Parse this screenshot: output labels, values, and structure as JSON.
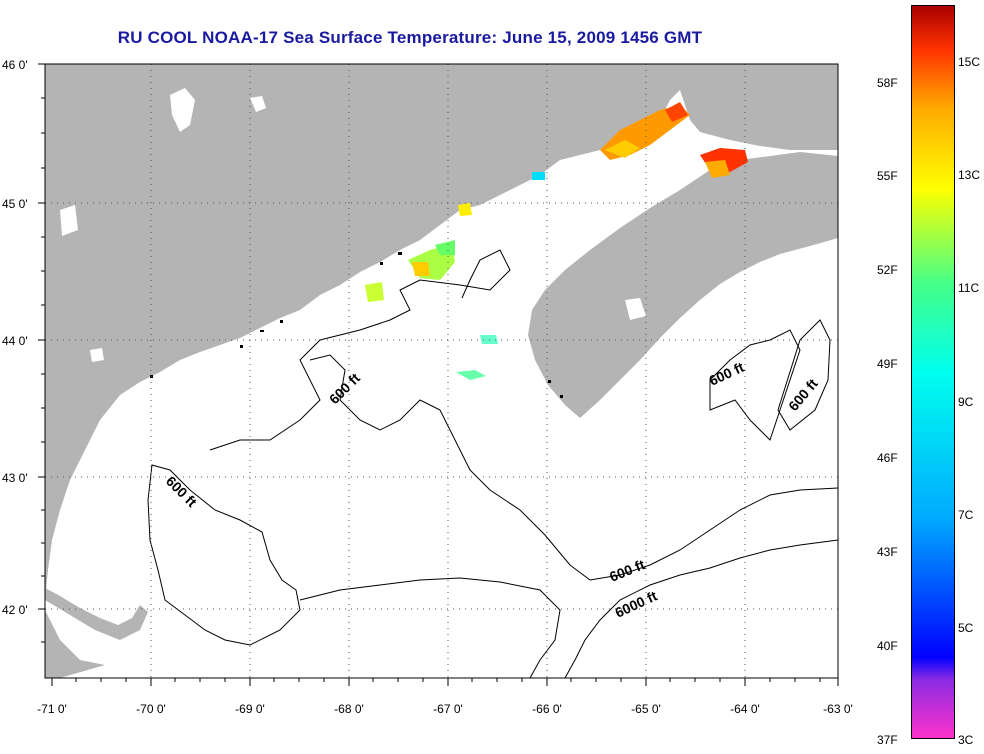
{
  "title": "RU COOL  NOAA-17  Sea Surface Temperature:  June 15, 2009 1456 GMT",
  "lat_labels": [
    "46 0'",
    "45 0'",
    "44 0'",
    "43 0'",
    "42 0'"
  ],
  "lon_labels": [
    "-71 0'",
    "-70 0'",
    "-69 0'",
    "-68 0'",
    "-67 0'",
    "-66 0'",
    "-65 0'",
    "-64 0'",
    "-63 0'"
  ],
  "contour_labels": [
    "600 ft",
    "600 ft",
    "600 ft",
    "600 ft",
    "600 ft",
    "6000 ft"
  ],
  "colorbar": {
    "fahrenheit": [
      "58F",
      "55F",
      "52F",
      "49F",
      "46F",
      "43F",
      "40F",
      "37F"
    ],
    "celsius": [
      "15C",
      "13C",
      "11C",
      "9C",
      "7C",
      "5C",
      "3C"
    ],
    "colors": [
      "#ff33cc",
      "#8a2be2",
      "#0000ff",
      "#00aaff",
      "#00ffee",
      "#44ff88",
      "#ffff00",
      "#ffaa00",
      "#ff3300",
      "#aa0000"
    ]
  },
  "colors": {
    "land": "#b4b4b4",
    "title": "#1a1aa0"
  }
}
